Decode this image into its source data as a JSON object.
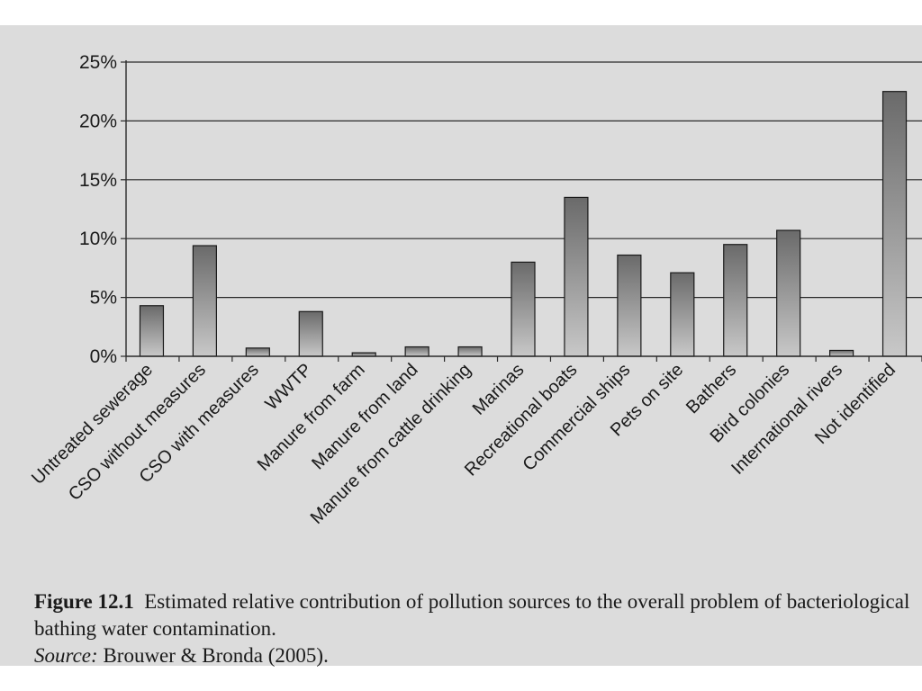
{
  "chart_data": {
    "type": "bar",
    "categories": [
      "Untreated sewerage",
      "CSO without measures",
      "CSO with measures",
      "WWTP",
      "Manure from farm",
      "Manure from land",
      "Manure from cattle drinking",
      "Marinas",
      "Recreational boats",
      "Commercial ships",
      "Pets on site",
      "Bathers",
      "Bird colonies",
      "International rivers",
      "Not identified"
    ],
    "values": [
      4.3,
      9.4,
      0.7,
      3.8,
      0.3,
      0.8,
      0.8,
      8.0,
      13.5,
      8.6,
      7.1,
      9.5,
      10.7,
      0.5,
      22.5
    ],
    "ylim": [
      0,
      25
    ],
    "yticks": [
      "0%",
      "5%",
      "10%",
      "15%",
      "20%",
      "25%"
    ],
    "grid": true,
    "bar_color_top": "#6a6a6a",
    "bar_color_bottom": "#c8c8c8",
    "background": "#dcdcdc"
  },
  "caption": {
    "label": "Figure 12.1",
    "text": "Estimated relative contribution of pollution sources to the overall problem of bacteriological bathing water contamination.",
    "source_label": "Source:",
    "source_text": "Brouwer & Bronda (2005)."
  }
}
